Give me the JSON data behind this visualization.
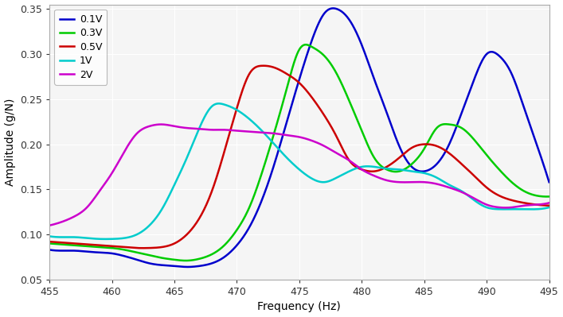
{
  "title": "",
  "xlabel": "Frequency (Hz)",
  "ylabel": "Amplitude (g/N)",
  "xlim": [
    455,
    495
  ],
  "ylim": [
    0.05,
    0.355
  ],
  "xticks": [
    455,
    460,
    465,
    470,
    475,
    480,
    485,
    490,
    495
  ],
  "yticks": [
    0.05,
    0.1,
    0.15,
    0.2,
    0.25,
    0.3,
    0.35
  ],
  "legend": [
    "0.1V",
    "0.3V",
    "0.5V",
    "1V",
    "2V"
  ],
  "colors": [
    "#0000cc",
    "#00cc00",
    "#cc0000",
    "#00cccc",
    "#cc00cc"
  ],
  "linewidth": 1.8,
  "background_color": "#f5f5f5",
  "grid_color": "#ffffff",
  "curves": {
    "0.1V": {
      "x": [
        455,
        456,
        457,
        458,
        459,
        460,
        461,
        462,
        463,
        464,
        465,
        466,
        467,
        468,
        469,
        470,
        471,
        472,
        473,
        474,
        475,
        476,
        477,
        478,
        479,
        480,
        481,
        482,
        483,
        484,
        485,
        486,
        487,
        488,
        489,
        490,
        491,
        492,
        493,
        494,
        495
      ],
      "y": [
        0.083,
        0.082,
        0.082,
        0.081,
        0.08,
        0.079,
        0.076,
        0.072,
        0.068,
        0.066,
        0.065,
        0.064,
        0.065,
        0.068,
        0.075,
        0.088,
        0.108,
        0.138,
        0.178,
        0.225,
        0.272,
        0.315,
        0.345,
        0.35,
        0.338,
        0.31,
        0.272,
        0.235,
        0.198,
        0.175,
        0.17,
        0.178,
        0.2,
        0.235,
        0.272,
        0.3,
        0.298,
        0.278,
        0.24,
        0.2,
        0.158
      ]
    },
    "0.3V": {
      "x": [
        455,
        456,
        457,
        458,
        459,
        460,
        461,
        462,
        463,
        464,
        465,
        466,
        467,
        468,
        469,
        470,
        471,
        472,
        473,
        474,
        475,
        476,
        477,
        478,
        479,
        480,
        481,
        482,
        483,
        484,
        485,
        486,
        487,
        488,
        489,
        490,
        491,
        492,
        493,
        494,
        495
      ],
      "y": [
        0.09,
        0.089,
        0.088,
        0.087,
        0.086,
        0.085,
        0.083,
        0.08,
        0.077,
        0.074,
        0.072,
        0.071,
        0.073,
        0.078,
        0.088,
        0.105,
        0.13,
        0.168,
        0.213,
        0.262,
        0.305,
        0.308,
        0.298,
        0.278,
        0.248,
        0.215,
        0.185,
        0.172,
        0.17,
        0.178,
        0.195,
        0.218,
        0.222,
        0.218,
        0.205,
        0.188,
        0.172,
        0.158,
        0.148,
        0.143,
        0.142
      ]
    },
    "0.5V": {
      "x": [
        455,
        456,
        457,
        458,
        459,
        460,
        461,
        462,
        463,
        464,
        465,
        466,
        467,
        468,
        469,
        470,
        471,
        472,
        473,
        474,
        475,
        476,
        477,
        478,
        479,
        480,
        481,
        482,
        483,
        484,
        485,
        486,
        487,
        488,
        489,
        490,
        491,
        492,
        493,
        494,
        495
      ],
      "y": [
        0.092,
        0.091,
        0.09,
        0.089,
        0.088,
        0.087,
        0.086,
        0.085,
        0.085,
        0.086,
        0.09,
        0.1,
        0.118,
        0.148,
        0.192,
        0.24,
        0.278,
        0.287,
        0.285,
        0.278,
        0.268,
        0.252,
        0.232,
        0.208,
        0.182,
        0.172,
        0.17,
        0.175,
        0.185,
        0.196,
        0.2,
        0.198,
        0.19,
        0.178,
        0.165,
        0.152,
        0.143,
        0.138,
        0.135,
        0.133,
        0.132
      ]
    },
    "1V": {
      "x": [
        455,
        456,
        457,
        458,
        459,
        460,
        461,
        462,
        463,
        464,
        465,
        466,
        467,
        468,
        469,
        470,
        471,
        472,
        473,
        474,
        475,
        476,
        477,
        478,
        479,
        480,
        481,
        482,
        483,
        484,
        485,
        486,
        487,
        488,
        489,
        490,
        491,
        492,
        493,
        494,
        495
      ],
      "y": [
        0.098,
        0.097,
        0.097,
        0.096,
        0.095,
        0.095,
        0.096,
        0.1,
        0.11,
        0.128,
        0.155,
        0.185,
        0.218,
        0.242,
        0.244,
        0.238,
        0.228,
        0.215,
        0.2,
        0.185,
        0.172,
        0.162,
        0.158,
        0.163,
        0.17,
        0.175,
        0.175,
        0.173,
        0.172,
        0.17,
        0.168,
        0.163,
        0.155,
        0.148,
        0.138,
        0.13,
        0.128,
        0.128,
        0.128,
        0.128,
        0.13
      ]
    },
    "2V": {
      "x": [
        455,
        456,
        457,
        458,
        459,
        460,
        461,
        462,
        463,
        464,
        465,
        466,
        467,
        468,
        469,
        470,
        471,
        472,
        473,
        474,
        475,
        476,
        477,
        478,
        479,
        480,
        481,
        482,
        483,
        484,
        485,
        486,
        487,
        488,
        489,
        490,
        491,
        492,
        493,
        494,
        495
      ],
      "y": [
        0.11,
        0.114,
        0.12,
        0.13,
        0.148,
        0.168,
        0.192,
        0.212,
        0.22,
        0.222,
        0.22,
        0.218,
        0.217,
        0.216,
        0.216,
        0.215,
        0.214,
        0.213,
        0.212,
        0.21,
        0.208,
        0.204,
        0.198,
        0.19,
        0.182,
        0.172,
        0.165,
        0.16,
        0.158,
        0.158,
        0.158,
        0.156,
        0.152,
        0.147,
        0.14,
        0.133,
        0.13,
        0.13,
        0.132,
        0.133,
        0.135
      ]
    }
  }
}
